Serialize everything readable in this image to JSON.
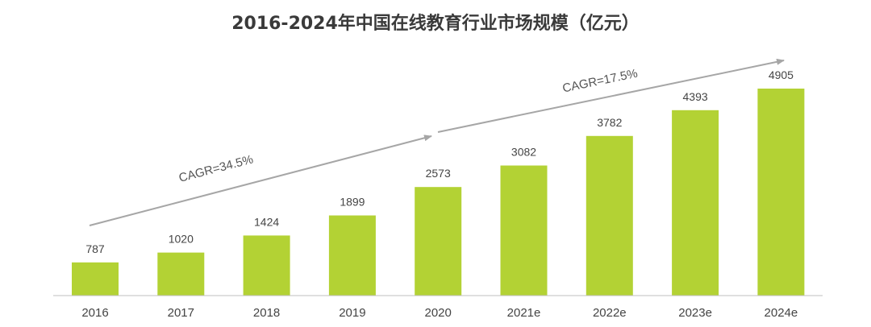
{
  "chart_data": {
    "type": "bar",
    "title": "2016-2024年中国在线教育行业市场规模（亿元）",
    "xlabel": "",
    "ylabel": "",
    "categories": [
      "2016",
      "2017",
      "2018",
      "2019",
      "2020",
      "2021e",
      "2022e",
      "2023e",
      "2024e"
    ],
    "values": [
      787,
      1020,
      1424,
      1899,
      2573,
      3082,
      3782,
      4393,
      4905
    ],
    "ylim": [
      0,
      5000
    ],
    "grid": false,
    "legend": "none",
    "annotations": [
      {
        "text": "CAGR=34.5%",
        "from": "2016",
        "to": "2020"
      },
      {
        "text": "CAGR=17.5%",
        "from": "2020",
        "to": "2024e"
      }
    ]
  },
  "colors": {
    "bar": "#b3d234",
    "arrow": "#a6a6a6",
    "axis": "#bfbfbf",
    "title": "#3a3a3a",
    "text": "#444444"
  }
}
